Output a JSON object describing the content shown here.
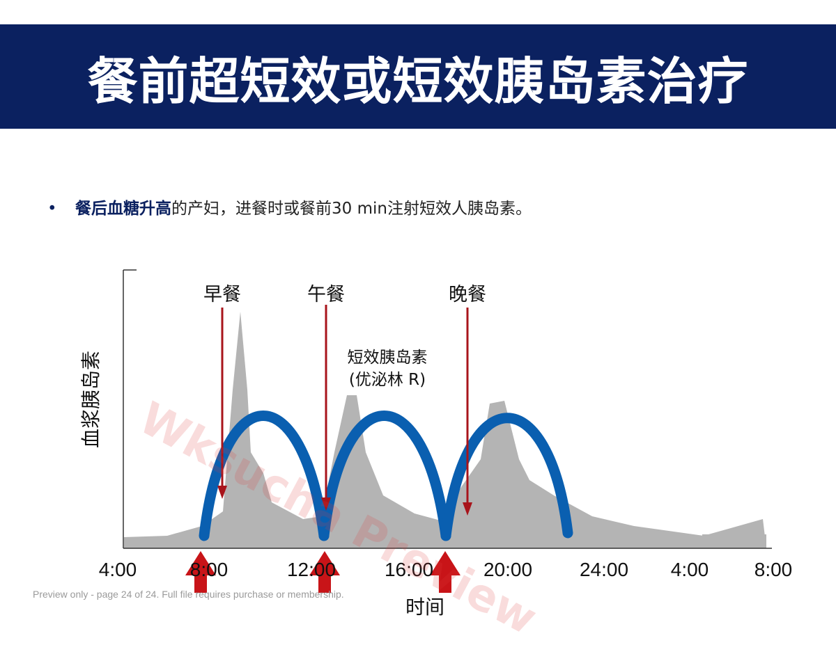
{
  "title": "餐前超短效或短效胰岛素治疗",
  "bullet": {
    "marker": "•",
    "highlight": "餐后血糖升高",
    "text": "的产妇，进餐时或餐前30 min注射短效人胰岛素。"
  },
  "diagram": {
    "y_axis_label": "血浆胰岛素",
    "x_axis_label": "时间",
    "time_ticks": [
      "4:00",
      "8:00",
      "12:00",
      "16:00",
      "20:00",
      "24:00",
      "4:00",
      "8:00"
    ],
    "meals": [
      "早餐",
      "午餐",
      "晚餐"
    ],
    "insulin_label_line1": "短效胰岛素",
    "insulin_label_line2": "(优泌林 R)",
    "colors": {
      "insulin_curve": "#0a5fb0",
      "physiological_area": "#b4b4b4",
      "meal_arrow": "#a8141b",
      "injection_arrow": "#c81418"
    }
  },
  "watermark": "Wksucha Preview",
  "footer_note": "Preview only - page 24 of 24. Full file requires purchase or membership."
}
